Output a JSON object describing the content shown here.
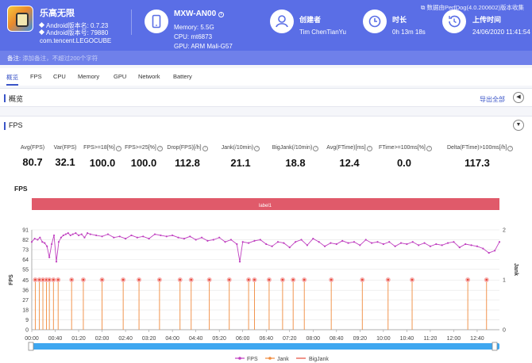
{
  "app": {
    "name": "乐高无限",
    "android_version": "Android版本名: 0.7.23",
    "android_code": "Android版本号: 79880",
    "package": "com.tencent.LEGOCUBE"
  },
  "device": {
    "name": "MXW-AN00",
    "memory": "Memory: 5.5G",
    "cpu": "CPU: mt6873",
    "gpu": "GPU: ARM Mali-G57"
  },
  "info": {
    "creator_label": "创建者",
    "creator_value": "Tim ChenTianYu",
    "duration_label": "时长",
    "duration_value": "0h 13m 18s",
    "upload_label": "上传时间",
    "upload_value": "24/06/2020 11:41:54",
    "perfdog_note": "数据由PerfDog(4.0.200602)版本收集"
  },
  "note": {
    "label": "备注:",
    "placeholder": "添加备注，不超过200个字符"
  },
  "tabs": [
    "概览",
    "FPS",
    "CPU",
    "Memory",
    "GPU",
    "Network",
    "Battery"
  ],
  "overview": {
    "title": "概览",
    "export_label": "导出全部"
  },
  "fps_section": {
    "title": "FPS"
  },
  "stats": [
    {
      "label": "Avg(FPS)",
      "value": "80.7"
    },
    {
      "label": "Var(FPS)",
      "value": "32.1"
    },
    {
      "label": "FPS>=18[%]",
      "value": "100.0"
    },
    {
      "label": "FPS>=25[%]",
      "value": "100.0"
    },
    {
      "label": "Drop(FPS)[/h]",
      "value": "112.8"
    },
    {
      "label": "Jank(/10min)",
      "value": "21.1"
    },
    {
      "label": "BigJank(/10min)",
      "value": "18.8"
    },
    {
      "label": "Avg(FTime)[ms]",
      "value": "12.4"
    },
    {
      "label": "FTime>=100ms[%]",
      "value": "0.0"
    },
    {
      "label": "Delta(FTime)>100ms[/h]",
      "value": "117.3"
    }
  ],
  "chart_data": {
    "type": "line",
    "title": "FPS",
    "band_label": "label1",
    "ylabel": "FPS",
    "ylabel_right": "Jank",
    "ylim": [
      0,
      91
    ],
    "yticks": [
      0,
      9,
      18,
      27,
      36,
      45,
      55,
      64,
      73,
      82,
      91
    ],
    "ylim_right": [
      0,
      2
    ],
    "yticks_right": [
      0,
      1,
      2
    ],
    "x_ticks": [
      "00:00",
      "00:40",
      "01:20",
      "02:00",
      "02:40",
      "03:20",
      "04:00",
      "04:40",
      "05:20",
      "06:00",
      "06:40",
      "07:20",
      "08:00",
      "08:40",
      "09:20",
      "10:00",
      "10:40",
      "11:20",
      "12:00",
      "12:40"
    ],
    "x_range_seconds": [
      0,
      798
    ],
    "fps_series": {
      "name": "FPS",
      "color": "#c040c0",
      "points_seconds": [
        0,
        5,
        10,
        14,
        18,
        22,
        26,
        30,
        34,
        38,
        42,
        46,
        50,
        54,
        58,
        62,
        66,
        70,
        75,
        80,
        85,
        90,
        95,
        100,
        110,
        120,
        130,
        140,
        150,
        160,
        170,
        180,
        190,
        200,
        210,
        220,
        230,
        240,
        250,
        260,
        270,
        280,
        290,
        300,
        310,
        320,
        330,
        340,
        350,
        355,
        360,
        370,
        380,
        390,
        400,
        410,
        420,
        430,
        440,
        450,
        460,
        470,
        480,
        490,
        500,
        510,
        520,
        530,
        540,
        550,
        560,
        570,
        580,
        590,
        600,
        610,
        620,
        630,
        640,
        650,
        660,
        670,
        680,
        690,
        700,
        710,
        720,
        730,
        740,
        750,
        760,
        770,
        780,
        790,
        798
      ],
      "values": [
        80,
        83,
        82,
        84,
        80,
        79,
        76,
        66,
        78,
        86,
        62,
        80,
        84,
        86,
        87,
        88,
        86,
        87,
        88,
        86,
        87,
        84,
        88,
        87,
        86,
        85,
        87,
        84,
        85,
        83,
        86,
        84,
        85,
        83,
        87,
        86,
        85,
        86,
        84,
        83,
        85,
        82,
        84,
        81,
        82,
        84,
        80,
        82,
        78,
        62,
        80,
        79,
        81,
        82,
        78,
        76,
        80,
        79,
        75,
        80,
        82,
        77,
        83,
        80,
        76,
        79,
        78,
        81,
        79,
        80,
        77,
        82,
        79,
        80,
        78,
        80,
        76,
        79,
        78,
        80,
        77,
        79,
        76,
        78,
        77,
        79,
        80,
        75,
        78,
        77,
        76,
        74,
        70,
        72,
        80
      ]
    },
    "jank_series": {
      "name": "Jank",
      "color": "#f08a3c",
      "events_seconds": [
        6,
        13,
        19,
        25,
        30,
        37,
        45,
        68,
        88,
        120,
        156,
        183,
        218,
        253,
        272,
        303,
        337,
        370,
        380,
        405,
        428,
        446,
        465,
        511,
        564,
        608,
        649,
        744,
        776
      ]
    },
    "bigjank_series": {
      "name": "BigJank",
      "color": "#e74c3c"
    },
    "legend": [
      "FPS",
      "Jank",
      "BigJank"
    ],
    "legend_position": "bottom",
    "grid": true
  }
}
